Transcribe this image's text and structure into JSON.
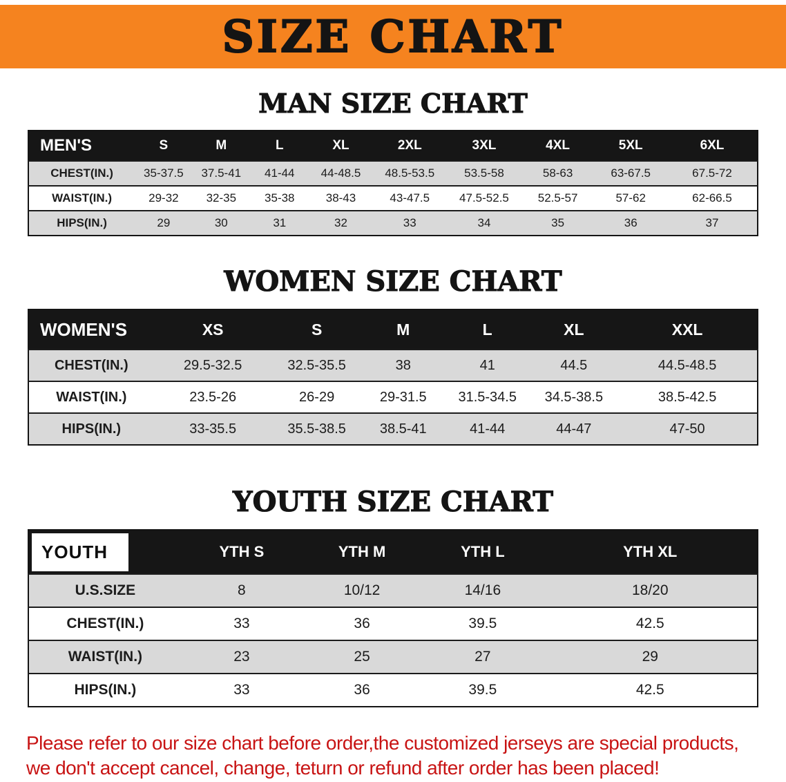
{
  "banner": {
    "title": "SIZE CHART"
  },
  "sections": {
    "men": {
      "heading": "MAN SIZE CHART"
    },
    "women": {
      "heading": "WOMEN SIZE CHART"
    },
    "youth": {
      "heading": "YOUTH SIZE CHART"
    }
  },
  "tables": {
    "men": {
      "header": [
        "MEN'S",
        "S",
        "M",
        "L",
        "XL",
        "2XL",
        "3XL",
        "4XL",
        "5XL",
        "6XL"
      ],
      "rows": [
        [
          "CHEST(IN.)",
          "35-37.5",
          "37.5-41",
          "41-44",
          "44-48.5",
          "48.5-53.5",
          "53.5-58",
          "58-63",
          "63-67.5",
          "67.5-72"
        ],
        [
          "WAIST(IN.)",
          "29-32",
          "32-35",
          "35-38",
          "38-43",
          "43-47.5",
          "47.5-52.5",
          "52.5-57",
          "57-62",
          "62-66.5"
        ],
        [
          "HIPS(IN.)",
          "29",
          "30",
          "31",
          "32",
          "33",
          "34",
          "35",
          "36",
          "37"
        ]
      ]
    },
    "women": {
      "header": [
        "WOMEN'S",
        "XS",
        "S",
        "M",
        "L",
        "XL",
        "XXL"
      ],
      "rows": [
        [
          "CHEST(IN.)",
          "29.5-32.5",
          "32.5-35.5",
          "38",
          "41",
          "44.5",
          "44.5-48.5"
        ],
        [
          "WAIST(IN.)",
          "23.5-26",
          "26-29",
          "29-31.5",
          "31.5-34.5",
          "34.5-38.5",
          "38.5-42.5"
        ],
        [
          "HIPS(IN.)",
          "33-35.5",
          "35.5-38.5",
          "38.5-41",
          "41-44",
          "44-47",
          "47-50"
        ]
      ]
    },
    "youth": {
      "header": [
        "YOUTH",
        "YTH S",
        "YTH M",
        "YTH L",
        "YTH XL"
      ],
      "rows": [
        [
          "U.S.SIZE",
          "8",
          "10/12",
          "14/16",
          "18/20"
        ],
        [
          "CHEST(IN.)",
          "33",
          "36",
          "39.5",
          "42.5"
        ],
        [
          "WAIST(IN.)",
          "23",
          "25",
          "27",
          "29"
        ],
        [
          "HIPS(IN.)",
          "33",
          "36",
          "39.5",
          "42.5"
        ]
      ]
    }
  },
  "disclaimer": {
    "line1": "Please refer to our size chart before order,the customized jerseys are special products,",
    "line2": "we don't accept cancel, change, teturn or refund after order has been placed!"
  },
  "colors": {
    "banner_orange": "#f5831f",
    "header_black": "#161616",
    "row_gray": "#d9d9d9",
    "disclaimer_red": "#c81414"
  }
}
